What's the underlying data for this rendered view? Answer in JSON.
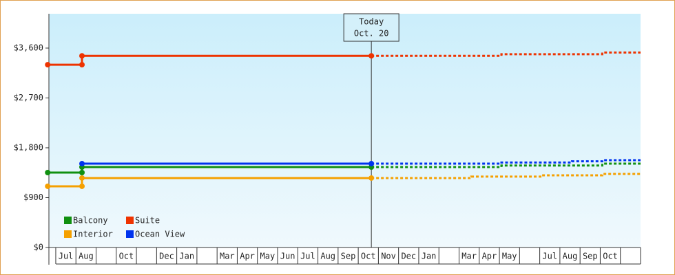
{
  "chart_data": {
    "type": "line",
    "categories": [
      "Jul",
      "Aug",
      null,
      "Oct",
      null,
      "Dec",
      "Jan",
      null,
      "Mar",
      "Apr",
      "May",
      "Jun",
      "Jul",
      "Aug",
      "Sep",
      "Oct",
      "Nov",
      "Dec",
      "Jan",
      null,
      "Mar",
      "Apr",
      "May",
      null,
      "Jul",
      "Aug",
      "Sep",
      "Oct",
      null
    ],
    "xlim": [
      -0.34,
      29
    ],
    "ylim": [
      0,
      4220
    ],
    "yticks": [
      {
        "value": 0,
        "label": "$0"
      },
      {
        "value": 900,
        "label": "$900"
      },
      {
        "value": 1800,
        "label": "$1,800"
      },
      {
        "value": 2700,
        "label": "$2,700"
      },
      {
        "value": 3600,
        "label": "$3,600"
      }
    ],
    "today": {
      "x": 15.65,
      "label": "Today",
      "date": "Oct. 20"
    },
    "series": [
      {
        "name": "Balcony",
        "color": "#109010",
        "x": [
          -0.4,
          1.3,
          1.3,
          15.65
        ],
        "values": [
          1353,
          1353,
          1452,
          1452
        ],
        "forecast_x": [
          15.65,
          22.1,
          22.1,
          27.1,
          27.1,
          29
        ],
        "forecast_values": [
          1452,
          1452,
          1480,
          1480,
          1514,
          1514
        ]
      },
      {
        "name": "Suite",
        "color": "#ee3300",
        "x": [
          -0.4,
          1.3,
          1.3,
          15.65
        ],
        "values": [
          3300,
          3300,
          3460,
          3460
        ],
        "forecast_x": [
          15.65,
          22.1,
          22.1,
          27.1,
          27.1,
          29
        ],
        "forecast_values": [
          3460,
          3460,
          3490,
          3490,
          3520,
          3520
        ]
      },
      {
        "name": "Interior",
        "color": "#f5a000",
        "x": [
          -0.4,
          1.3,
          1.3,
          15.65
        ],
        "values": [
          1105,
          1105,
          1254,
          1254
        ],
        "forecast_x": [
          15.65,
          20.6,
          20.6,
          24.1,
          24.1,
          27.1,
          27.1,
          29
        ],
        "forecast_values": [
          1254,
          1254,
          1280,
          1280,
          1304,
          1304,
          1328,
          1328
        ]
      },
      {
        "name": "Ocean View",
        "color": "#0033ee",
        "x": [
          1.3,
          15.65
        ],
        "values": [
          1514,
          1514
        ],
        "forecast_x": [
          15.65,
          22.1,
          22.1,
          25.6,
          25.6,
          27.1,
          27.1,
          29
        ],
        "forecast_values": [
          1514,
          1514,
          1535,
          1535,
          1556,
          1556,
          1576,
          1576
        ]
      }
    ]
  }
}
